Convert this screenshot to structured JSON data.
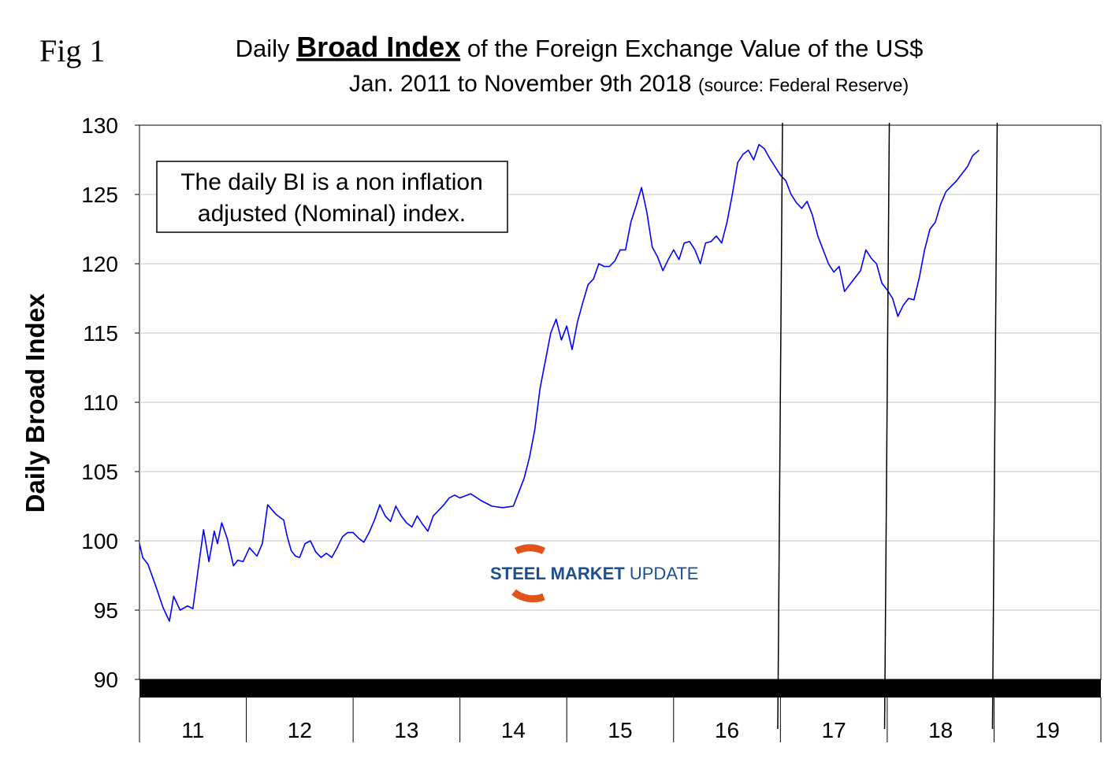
{
  "figure_label": "Fig 1",
  "title": {
    "prefix": "Daily",
    "emphasis": "Broad Index",
    "suffix": "of the Foreign Exchange Value of the US$",
    "line2": "Jan. 2011 to November 9th 2018",
    "source": "(source: Federal Reserve)"
  },
  "annotation": {
    "line1": "The daily BI is a non inflation",
    "line2": "adjusted (Nominal) index."
  },
  "logo": {
    "word1": "STEEL",
    "word2": "MARKET",
    "word3": "UPDATE"
  },
  "colors": {
    "series": "#0000ff",
    "grid": "#c0c0c0",
    "band": "#000000",
    "logo_accent": "#e0541c",
    "logo_text": "#1f4e8c"
  },
  "chart_data": {
    "type": "line",
    "ylabel": "Daily Broad Index",
    "xlabel": "",
    "ylim": [
      90,
      130
    ],
    "yticks": [
      90,
      95,
      100,
      105,
      110,
      115,
      120,
      125,
      130
    ],
    "x_categories": [
      "11",
      "12",
      "13",
      "14",
      "15",
      "16",
      "17",
      "18",
      "19"
    ],
    "x_unit": "year (2-digit)",
    "grid": true,
    "legend": "none",
    "markers_year": [
      2016.99,
      2017.99,
      2019.0
    ],
    "series": [
      {
        "x": [
          2011.0,
          2011.03,
          2011.08,
          2011.15,
          2011.22,
          2011.28,
          2011.32,
          2011.38,
          2011.45,
          2011.5,
          2011.55,
          2011.6,
          2011.65,
          2011.7,
          2011.73,
          2011.77,
          2011.82,
          2011.88,
          2011.92,
          2011.97,
          2012.03,
          2012.1,
          2012.15,
          2012.2,
          2012.28,
          2012.35,
          2012.38,
          2012.42,
          2012.46,
          2012.5,
          2012.55,
          2012.6,
          2012.65,
          2012.7,
          2012.75,
          2012.8,
          2012.85,
          2012.9,
          2012.95,
          2013.0,
          2013.05,
          2013.1,
          2013.15,
          2013.2,
          2013.25,
          2013.3,
          2013.35,
          2013.4,
          2013.45,
          2013.5,
          2013.55,
          2013.6,
          2013.65,
          2013.7,
          2013.75,
          2013.8,
          2013.85,
          2013.9,
          2013.95,
          2014.0,
          2014.1,
          2014.2,
          2014.3,
          2014.4,
          2014.5,
          2014.55,
          2014.6,
          2014.65,
          2014.7,
          2014.75,
          2014.8,
          2014.85,
          2014.9,
          2014.95,
          2015.0,
          2015.05,
          2015.1,
          2015.15,
          2015.2,
          2015.25,
          2015.3,
          2015.35,
          2015.4,
          2015.45,
          2015.5,
          2015.55,
          2015.6,
          2015.65,
          2015.7,
          2015.75,
          2015.8,
          2015.85,
          2015.9,
          2015.95,
          2016.0,
          2016.05,
          2016.1,
          2016.15,
          2016.2,
          2016.25,
          2016.3,
          2016.35,
          2016.4,
          2016.45,
          2016.5,
          2016.55,
          2016.6,
          2016.65,
          2016.7,
          2016.75,
          2016.8,
          2016.85,
          2016.9,
          2016.95,
          2017.0,
          2017.05,
          2017.1,
          2017.15,
          2017.2,
          2017.25,
          2017.3,
          2017.35,
          2017.4,
          2017.45,
          2017.5,
          2017.55,
          2017.6,
          2017.65,
          2017.7,
          2017.75,
          2017.8,
          2017.85,
          2017.9,
          2017.95,
          2018.0,
          2018.05,
          2018.1,
          2018.15,
          2018.2,
          2018.25,
          2018.3,
          2018.35,
          2018.4,
          2018.45,
          2018.5,
          2018.55,
          2018.6,
          2018.65,
          2018.7,
          2018.75,
          2018.8,
          2018.86
        ],
        "y": [
          99.8,
          98.8,
          98.3,
          96.8,
          95.2,
          94.2,
          96.0,
          95.0,
          95.3,
          95.1,
          98.0,
          100.8,
          98.5,
          100.7,
          99.8,
          101.3,
          100.2,
          98.2,
          98.6,
          98.5,
          99.5,
          98.9,
          99.8,
          102.6,
          101.9,
          101.5,
          100.4,
          99.3,
          98.9,
          98.8,
          99.8,
          100.0,
          99.2,
          98.8,
          99.1,
          98.8,
          99.5,
          100.3,
          100.6,
          100.6,
          100.2,
          99.9,
          100.6,
          101.5,
          102.6,
          101.8,
          101.4,
          102.5,
          101.8,
          101.3,
          101.0,
          101.8,
          101.2,
          100.7,
          101.8,
          102.2,
          102.6,
          103.1,
          103.3,
          103.1,
          103.4,
          102.9,
          102.5,
          102.4,
          102.5,
          103.5,
          104.5,
          106.0,
          108.0,
          111.0,
          113.0,
          115.0,
          116.0,
          114.5,
          115.5,
          113.8,
          115.8,
          117.2,
          118.5,
          118.9,
          120.0,
          119.8,
          119.8,
          120.2,
          121.0,
          121.0,
          123.0,
          124.2,
          125.5,
          123.7,
          121.2,
          120.5,
          119.5,
          120.3,
          121.0,
          120.3,
          121.5,
          121.6,
          121.0,
          120.0,
          121.5,
          121.6,
          122.0,
          121.5,
          123.0,
          125.0,
          127.3,
          127.9,
          128.2,
          127.5,
          128.6,
          128.3,
          127.6,
          127.0,
          126.4,
          126.0,
          125.0,
          124.4,
          124.0,
          124.5,
          123.5,
          122.0,
          121.0,
          120.0,
          119.4,
          119.8,
          118.0,
          118.5,
          119.0,
          119.5,
          121.0,
          120.4,
          120.0,
          118.6,
          118.1,
          117.5,
          116.2,
          117.0,
          117.5,
          117.4,
          119.0,
          121.0,
          122.5,
          123.0,
          124.3,
          125.2,
          125.6,
          126.0,
          126.5,
          127.0,
          127.8,
          128.2
        ]
      }
    ]
  }
}
